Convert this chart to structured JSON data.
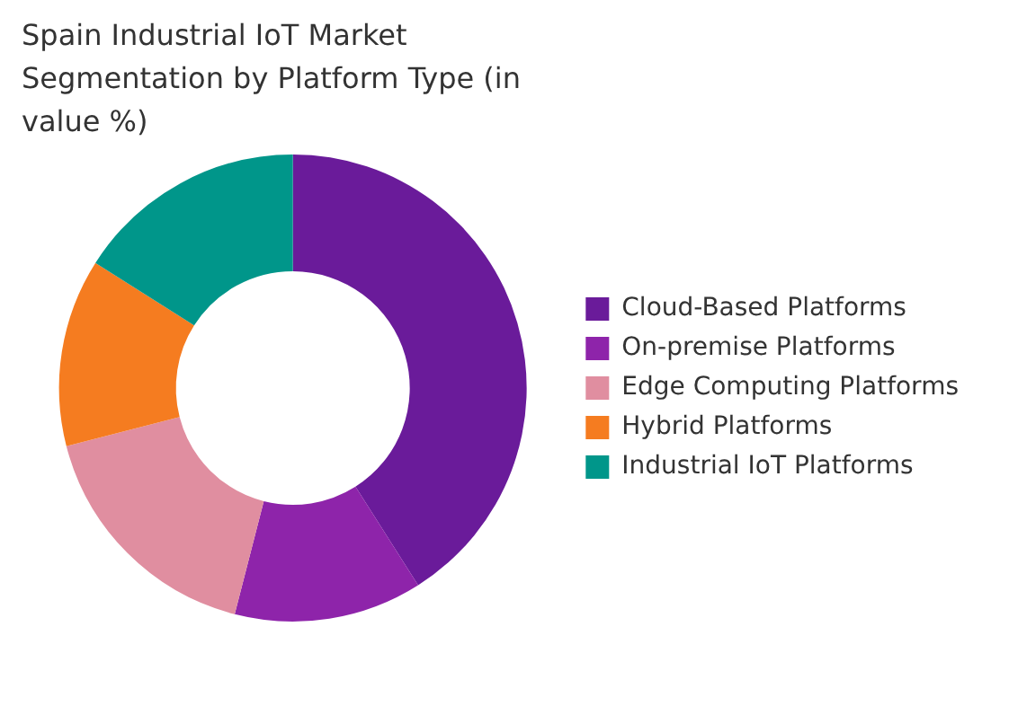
{
  "chart_data": {
    "type": "donut",
    "title": "Spain Industrial IoT Market Segmentation by Platform Type (in value %)",
    "categories": [
      "Cloud-Based Platforms",
      "On-premise Platforms",
      "Edge Computing Platforms",
      "Hybrid Platforms",
      "Industrial IoT Platforms"
    ],
    "values": [
      41,
      13,
      17,
      13,
      16
    ],
    "colors": [
      "#6a1b9a",
      "#8e24aa",
      "#e08ea0",
      "#f57c20",
      "#00968a"
    ],
    "legend": "right"
  }
}
